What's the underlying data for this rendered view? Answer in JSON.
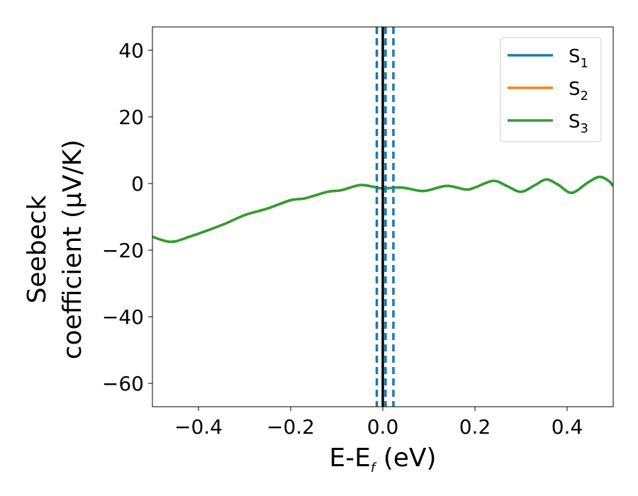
{
  "chart_data": {
    "type": "line",
    "xlabel": {
      "main": "E-E",
      "sub": "f",
      "unit": " (eV)"
    },
    "ylabel": {
      "line1": "Seebeck",
      "line2": "coefficient  (μV/K)"
    },
    "xlim": [
      -0.5,
      0.5
    ],
    "ylim": [
      -67,
      47
    ],
    "xticks": [
      -0.4,
      -0.2,
      0.0,
      0.2,
      0.4
    ],
    "xtick_labels": [
      "−0.4",
      "−0.2",
      "0.0",
      "0.2",
      "0.4"
    ],
    "yticks": [
      40,
      20,
      0,
      -20,
      -40,
      -60
    ],
    "ytick_labels": [
      "40",
      "20",
      "0",
      "−20",
      "−40",
      "−60"
    ],
    "legend_position": "top-right",
    "series": [
      {
        "name": "S",
        "sub": "1",
        "color": "#1f77b4",
        "x": [
          -0.5,
          -0.46,
          -0.42,
          -0.35,
          -0.3,
          -0.25,
          -0.2,
          -0.17,
          -0.12,
          -0.09,
          -0.05,
          -0.02,
          0.0,
          0.04,
          0.08,
          0.1,
          0.14,
          0.18,
          0.2,
          0.24,
          0.27,
          0.3,
          0.33,
          0.355,
          0.38,
          0.41,
          0.445,
          0.47,
          0.49,
          0.5
        ],
        "y": [
          -16,
          -17.5,
          -16,
          -12.5,
          -9.5,
          -7.5,
          -5,
          -4.5,
          -2.5,
          -2,
          -0.5,
          -1,
          -1.5,
          -1.2,
          -2.2,
          -2,
          -0.7,
          -1.8,
          -1.2,
          0.8,
          -0.8,
          -2.5,
          -0.5,
          1.2,
          -0.3,
          -2.8,
          0.3,
          2,
          0.8,
          -0.8
        ]
      },
      {
        "name": "S",
        "sub": "2",
        "color": "#ff7f0e",
        "x": [
          -0.5,
          -0.46,
          -0.42,
          -0.35,
          -0.3,
          -0.25,
          -0.2,
          -0.17,
          -0.12,
          -0.09,
          -0.05,
          -0.02,
          0.0,
          0.04,
          0.08,
          0.1,
          0.14,
          0.18,
          0.2,
          0.24,
          0.27,
          0.3,
          0.33,
          0.355,
          0.38,
          0.41,
          0.445,
          0.47,
          0.49,
          0.5
        ],
        "y": [
          -16,
          -17.5,
          -16,
          -12.5,
          -9.5,
          -7.5,
          -5,
          -4.5,
          -2.5,
          -2,
          -0.5,
          -1,
          -1.5,
          -1.2,
          -2.2,
          -2,
          -0.7,
          -1.8,
          -1.2,
          0.8,
          -0.8,
          -2.5,
          -0.5,
          1.2,
          -0.3,
          -2.8,
          0.3,
          2,
          0.8,
          -0.8
        ]
      },
      {
        "name": "S",
        "sub": "3",
        "color": "#2ca02c",
        "x": [
          -0.5,
          -0.46,
          -0.42,
          -0.35,
          -0.3,
          -0.25,
          -0.2,
          -0.17,
          -0.12,
          -0.09,
          -0.05,
          -0.02,
          0.0,
          0.04,
          0.08,
          0.1,
          0.14,
          0.18,
          0.2,
          0.24,
          0.27,
          0.3,
          0.33,
          0.355,
          0.38,
          0.41,
          0.445,
          0.47,
          0.49,
          0.5
        ],
        "y": [
          -16,
          -17.5,
          -16,
          -12.5,
          -9.5,
          -7.5,
          -5,
          -4.5,
          -2.5,
          -2,
          -0.5,
          -1,
          -1.5,
          -1.2,
          -2.2,
          -2,
          -0.7,
          -1.8,
          -1.2,
          0.8,
          -0.8,
          -2.5,
          -0.5,
          1.2,
          -0.3,
          -2.8,
          0.3,
          2,
          0.8,
          -0.8
        ]
      }
    ],
    "vlines": [
      {
        "x": 0.0,
        "color": "#000000",
        "style": "solid"
      },
      {
        "x": -0.013,
        "color": "#1f77b4",
        "style": "dashed"
      },
      {
        "x": 0.006,
        "color": "#1f77b4",
        "style": "dashed"
      },
      {
        "x": 0.023,
        "color": "#1f77b4",
        "style": "dashed"
      }
    ]
  }
}
